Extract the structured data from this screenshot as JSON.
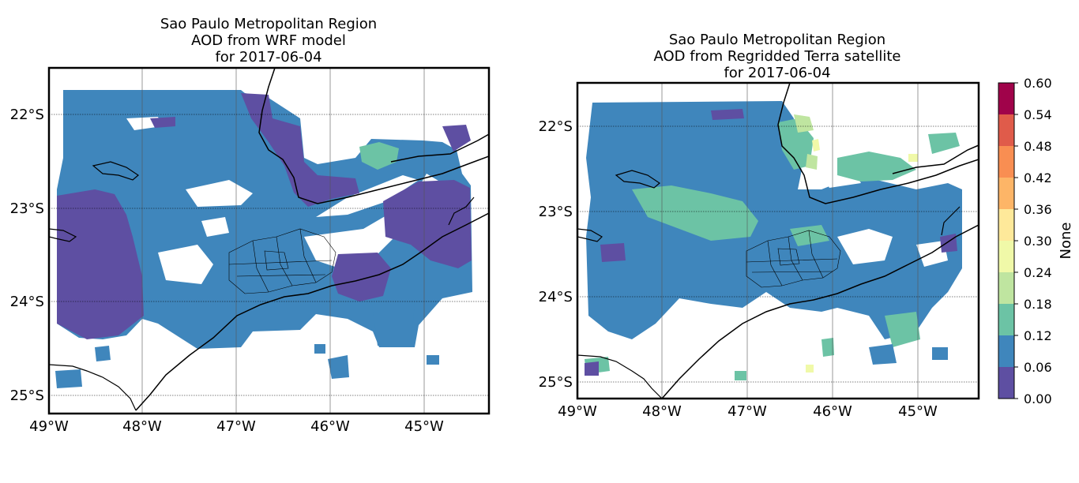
{
  "panels": [
    {
      "id": "wrf",
      "title_lines": [
        "Sao Paulo Metropolitan Region",
        "AOD  from WRF model",
        "for 2017-06-04"
      ],
      "lon_ticks": [
        "49°W",
        "48°W",
        "47°W",
        "46°W",
        "45°W"
      ],
      "lat_ticks": [
        "22°S",
        "23°S",
        "24°S",
        "25°S"
      ]
    },
    {
      "id": "terra",
      "title_lines": [
        "Sao Paulo Metropolitan Region",
        "AOD  from Regridded Terra satellite",
        "for 2017-06-04"
      ],
      "lon_ticks": [
        "49°W",
        "48°W",
        "47°W",
        "46°W",
        "45°W"
      ],
      "lat_ticks": [
        "22°S",
        "23°S",
        "24°S",
        "25°S"
      ]
    }
  ],
  "chart_data": {
    "type": "heatmap",
    "x_range_lon": [
      -49.0,
      -44.3
    ],
    "y_range_lat": [
      -25.2,
      -21.5
    ],
    "gridlines": true,
    "colorbar": {
      "label": "None",
      "ticks": [
        "0.00",
        "0.06",
        "0.12",
        "0.18",
        "0.24",
        "0.30",
        "0.36",
        "0.42",
        "0.48",
        "0.54",
        "0.60"
      ],
      "bins": [
        0.0,
        0.06,
        0.12,
        0.18,
        0.24,
        0.3,
        0.36,
        0.42,
        0.48,
        0.54,
        0.6
      ],
      "colors": [
        "#5e4fa2",
        "#3f86bc",
        "#6cc3a5",
        "#bfe5a0",
        "#f0f9a8",
        "#fee99a",
        "#fdb567",
        "#f98e52",
        "#e05b4a",
        "#a0034a"
      ]
    }
  }
}
